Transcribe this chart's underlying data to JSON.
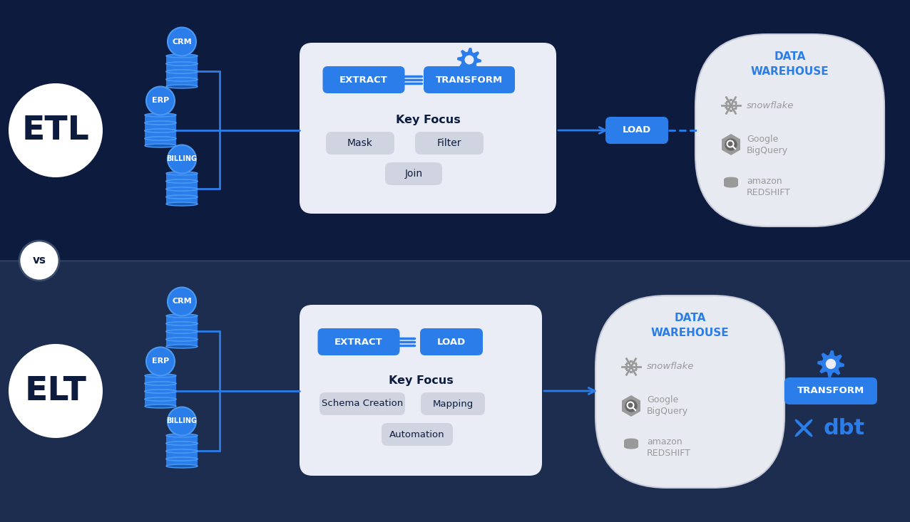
{
  "bg_etl": "#0d1b3e",
  "bg_elt": "#1c2d50",
  "white": "#ffffff",
  "blue_btn": "#2b7de9",
  "blue_db": "#2b7de9",
  "blue_db_dark": "#1a5cb8",
  "blue_db_edge": "#4a9af5",
  "light_panel": "#eaedf5",
  "gray_pill": "#d0d4e0",
  "blue_text": "#2b7de9",
  "dark_text": "#0d1b3e",
  "etl_label": "ETL",
  "elt_label": "ELT",
  "vs_label": "vs",
  "extract_label": "EXTRACT",
  "transform_label": "TRANSFORM",
  "load_label": "LOAD",
  "key_focus_label": "Key Focus",
  "etl_pills_row1": [
    "Mask",
    "Filter"
  ],
  "etl_pills_row2": [
    "Join"
  ],
  "elt_pills_row1": [
    "Schema Creation",
    "Mapping"
  ],
  "elt_pills_row2": [
    "Automation"
  ],
  "dw_label": "DATA\nWAREHOUSE",
  "snowflake_label": "snowflake",
  "transform_elt": "TRANSFORM",
  "dbt_label": "dbt",
  "icon_color": "#999999"
}
